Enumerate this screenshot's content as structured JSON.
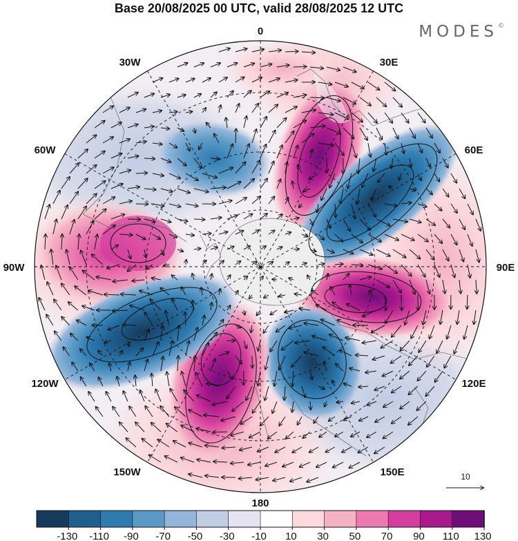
{
  "header": {
    "title": "Base 20/08/2025 00 UTC, valid 28/08/2025 12 UTC",
    "brand": "MODES",
    "brand_mark": "©"
  },
  "map": {
    "projection": "polar stereographic, north pole",
    "longitude_labels": {
      "top": "0",
      "top_right": "30E",
      "right_upper": "60E",
      "right": "90E",
      "right_lower": "120E",
      "bottom_right": "150E",
      "bottom": "180",
      "bottom_left": "150W",
      "left_lower": "120W",
      "left": "90W",
      "left_upper": "60W",
      "top_left": "30W"
    },
    "wind_reference_label": "10"
  },
  "colorbar": {
    "ticks": [
      "-130",
      "-110",
      "-90",
      "-70",
      "-50",
      "-30",
      "-10",
      "10",
      "30",
      "50",
      "70",
      "90",
      "110",
      "130"
    ],
    "colors": [
      "#173a5c",
      "#1e5f8e",
      "#2f7bb0",
      "#5b9ac7",
      "#93b5d9",
      "#c1cde3",
      "#e6e4f0",
      "#ffffff",
      "#fbd9dd",
      "#f5b1c5",
      "#ec79b0",
      "#d43e9c",
      "#a8198c",
      "#6e0f79"
    ]
  },
  "colors": {
    "land": "#eeeeee",
    "text": "#111111",
    "brand": "#666666"
  }
}
